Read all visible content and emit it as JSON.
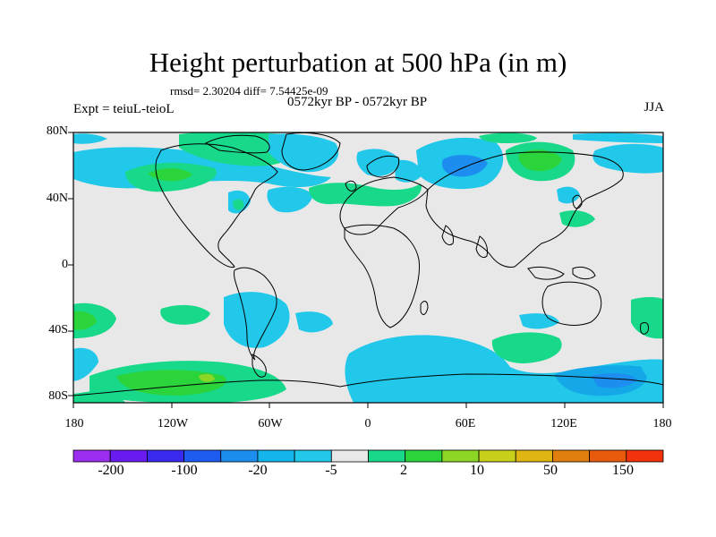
{
  "title": "Height perturbation at 500 hPa (in m)",
  "stats_line": "rmsd= 2.30204 diff= 7.54425e-09",
  "period": "0572kyr BP - 0572kyr BP",
  "experiment": "Expt = teiuL-teioL",
  "season": "JJA",
  "lat_labels": [
    "80N",
    "40N",
    "0",
    "40S",
    "80S"
  ],
  "lon_labels": [
    "180",
    "120W",
    "60W",
    "0",
    "60E",
    "120E",
    "180"
  ],
  "colorbar": {
    "labels": [
      "-200",
      "-100",
      "-20",
      "-5",
      "2",
      "10",
      "50",
      "150"
    ],
    "colors": [
      "#9b2df0",
      "#6a1cf0",
      "#3a2af0",
      "#1e5cf0",
      "#1d8ef0",
      "#14b4ec",
      "#22c8ea",
      "#e8e8e8",
      "#18d88a",
      "#2cd43c",
      "#8ed626",
      "#c8d01a",
      "#e0b412",
      "#e07f0e",
      "#e85a0c",
      "#f2320c"
    ]
  },
  "map_colors": {
    "background": "#e8e8e8",
    "light_blue": "#22c8ea",
    "mid_blue": "#14a8e8",
    "deep_blue": "#1d8ef0",
    "light_green": "#18d88a",
    "green": "#2cd43c",
    "yellow_green": "#8ed626",
    "coast": "#000000"
  }
}
